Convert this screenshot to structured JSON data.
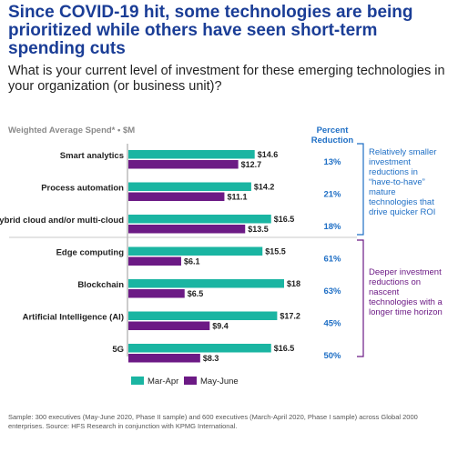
{
  "title": "Since COVID-19 hit, some technologies are being prioritized while others have seen short-term spending cuts",
  "subtitle": "What is your current level of investment for these emerging technologies in your organization (or business unit)?",
  "footnote": "Sample: 300 executives (May-June 2020, Phase II sample) and 600 executives (March-April 2020, Phase I sample) across Global 2000 enterprises. Source: HFS Research in conjunction with KPMG International.",
  "colors": {
    "mar_apr": "#1ab5a2",
    "may_june": "#6c1a85",
    "title": "#1a3d96",
    "percent": "#1f6fc5"
  },
  "chart_data": {
    "type": "bar",
    "orientation": "horizontal",
    "title": "Weighted Average Spend* • $M",
    "categories": [
      "Smart analytics",
      "Process automation",
      "Hybrid cloud and/or multi-cloud",
      "Edge computing",
      "Blockchain",
      "Artificial Intelligence (AI)",
      "5G"
    ],
    "series": [
      {
        "name": "Mar-Apr",
        "values": [
          14.6,
          14.2,
          16.5,
          15.5,
          18,
          17.2,
          16.5
        ],
        "labels": [
          "$14.6",
          "$14.2",
          "$16.5",
          "$15.5",
          "$18",
          "$17.2",
          "$16.5"
        ]
      },
      {
        "name": "May-June",
        "values": [
          12.7,
          11.1,
          13.5,
          6.1,
          6.5,
          9.4,
          8.3
        ],
        "labels": [
          "$12.7",
          "$11.1",
          "$13.5",
          "$6.1",
          "$6.5",
          "$9.4",
          "$8.3"
        ]
      }
    ],
    "percent_reduction_header": "Percent Reduction",
    "percent_reduction": [
      "13%",
      "21%",
      "18%",
      "61%",
      "63%",
      "45%",
      "50%"
    ],
    "groups": [
      {
        "note": "Relatively smaller investment reductions in “have-to-have” mature technologies that drive quicker ROI"
      },
      {
        "note": "Deeper investment reductions on nascent technologies with a longer time horizon"
      }
    ],
    "legend_position": "bottom-left"
  }
}
